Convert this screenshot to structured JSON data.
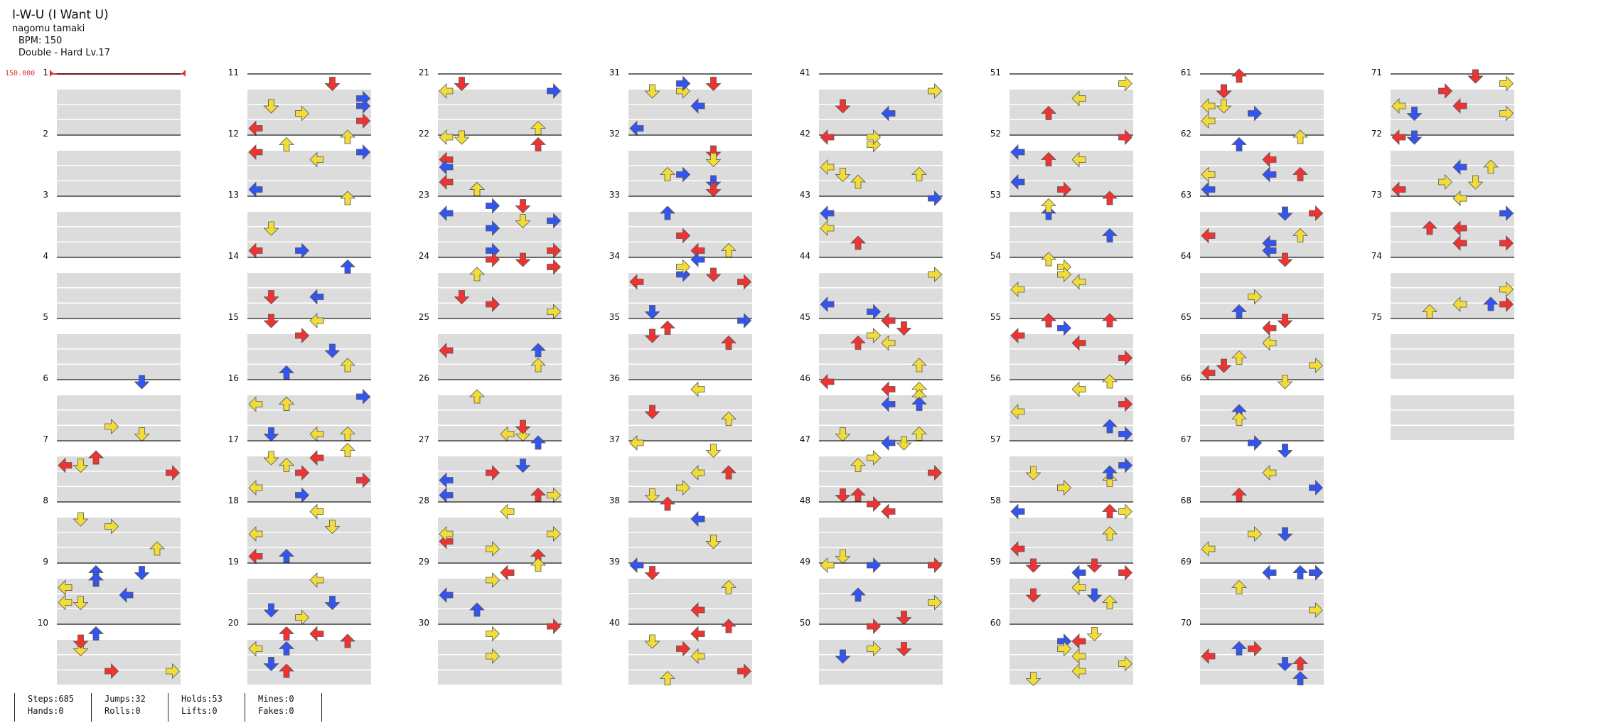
{
  "song": {
    "title": "I-W-U (I Want U)",
    "artist": "nagomu tamaki",
    "bpm_text": "BPM: 150",
    "difficulty_text": "Double - Hard  Lv.17"
  },
  "bpm_marker": "150.000",
  "measures": {
    "total": 75,
    "per_column": 10,
    "columns": 8
  },
  "colors": {
    "quarter": "#ee3333",
    "eighth": "#3355ee",
    "sixteenth": "#f2dc3a",
    "hold_body": "#9be39b",
    "row_shade": "#dcdcdc",
    "measure_line": "#111111",
    "bpm_marker": "#e0302c"
  },
  "stats": [
    {
      "label": "Steps:685",
      "label2": "Hands:0"
    },
    {
      "label": "Jumps:32",
      "label2": "Rolls:0"
    },
    {
      "label": "Holds:53",
      "label2": "Lifts:0"
    },
    {
      "label": "Mines:0",
      "label2": "Fakes:0"
    }
  ]
}
